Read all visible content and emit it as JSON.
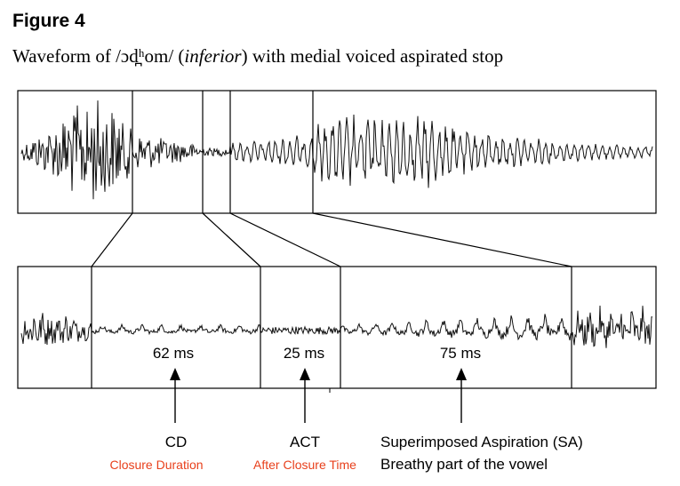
{
  "figure": {
    "label": "Figure 4",
    "caption_prefix": "Waveform of /ɔd̪ʰom/ (",
    "caption_gloss": "inferior",
    "caption_suffix": ") with medial voiced aspirated stop"
  },
  "segments": [
    {
      "id": "cd",
      "duration_label": "62 ms",
      "abbr": "CD",
      "description": "Closure Duration",
      "description_color": "#e8401c"
    },
    {
      "id": "act",
      "duration_label": "25 ms",
      "abbr": "ACT",
      "description": "After Closure Time",
      "description_color": "#e8401c"
    },
    {
      "id": "sa",
      "duration_label": "75 ms",
      "abbr": "Superimposed Aspiration (SA)",
      "description": "Breathy part of the vowel",
      "description_color": "#000000"
    }
  ],
  "colors": {
    "waveform": "#111111",
    "frame": "#000000",
    "accent": "#e8401c"
  }
}
